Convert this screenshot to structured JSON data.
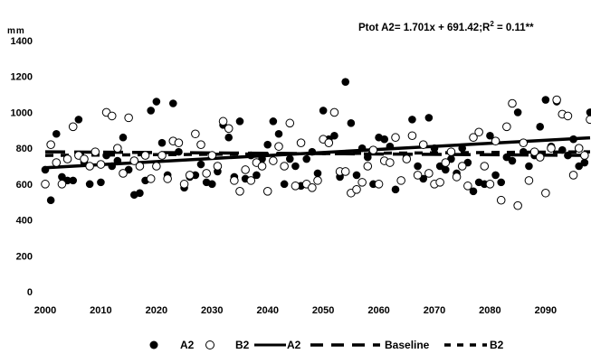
{
  "chart_data": {
    "type": "scatter",
    "ylabel": "mm",
    "annotation": "Ptot A2= 1.701x + 691.42;R",
    "annotation_sup": "2",
    "annotation_tail": " = 0.11**",
    "ylim": [
      0,
      1400
    ],
    "xlim": [
      2000,
      2098
    ],
    "yticks": [
      "0",
      "200",
      "400",
      "600",
      "800",
      "1000",
      "1200",
      "1400"
    ],
    "xticks": [
      "2000",
      "2010",
      "2020",
      "2030",
      "2040",
      "2050",
      "2060",
      "2070",
      "2080",
      "2090"
    ],
    "grid": false,
    "legend_position": "bottom",
    "legend": [
      "A2",
      "B2",
      "A2",
      "Baseline",
      "B2"
    ],
    "series": [
      {
        "name": "A2",
        "marker": "filled-circle",
        "x": [
          2000,
          2001,
          2002,
          2003,
          2004,
          2005,
          2006,
          2007,
          2008,
          2009,
          2010,
          2011,
          2012,
          2013,
          2014,
          2015,
          2016,
          2017,
          2018,
          2019,
          2020,
          2021,
          2022,
          2023,
          2024,
          2025,
          2026,
          2027,
          2028,
          2029,
          2030,
          2031,
          2032,
          2033,
          2034,
          2035,
          2036,
          2037,
          2038,
          2039,
          2040,
          2041,
          2042,
          2043,
          2044,
          2045,
          2046,
          2047,
          2048,
          2049,
          2050,
          2051,
          2052,
          2053,
          2054,
          2055,
          2056,
          2057,
          2058,
          2059,
          2060,
          2061,
          2062,
          2063,
          2064,
          2065,
          2066,
          2067,
          2068,
          2069,
          2070,
          2071,
          2072,
          2073,
          2074,
          2075,
          2076,
          2077,
          2078,
          2079,
          2080,
          2081,
          2082,
          2083,
          2084,
          2085,
          2086,
          2087,
          2088,
          2089,
          2090,
          2091,
          2092,
          2093,
          2094,
          2095,
          2096,
          2097,
          2098
        ],
        "values": [
          680,
          510,
          880,
          640,
          620,
          620,
          960,
          720,
          600,
          780,
          610,
          760,
          700,
          730,
          860,
          680,
          540,
          550,
          620,
          1010,
          1060,
          830,
          650,
          1050,
          780,
          580,
          640,
          650,
          710,
          610,
          600,
          670,
          930,
          860,
          640,
          950,
          630,
          760,
          650,
          740,
          820,
          950,
          880,
          600,
          740,
          700,
          590,
          740,
          780,
          660,
          1010,
          850,
          870,
          640,
          1170,
          940,
          650,
          800,
          750,
          600,
          860,
          850,
          810,
          570,
          620,
          750,
          960,
          700,
          630,
          970,
          800,
          700,
          680,
          740,
          660,
          800,
          720,
          560,
          610,
          600,
          870,
          650,
          610,
          750,
          730,
          1000,
          780,
          700,
          760,
          920,
          1070,
          810,
          1060,
          790,
          760,
          850,
          700,
          720,
          1000
        ]
      },
      {
        "name": "B2",
        "marker": "open-circle",
        "x": [
          2000,
          2001,
          2002,
          2003,
          2004,
          2005,
          2006,
          2007,
          2008,
          2009,
          2010,
          2011,
          2012,
          2013,
          2014,
          2015,
          2016,
          2017,
          2018,
          2019,
          2020,
          2021,
          2022,
          2023,
          2024,
          2025,
          2026,
          2027,
          2028,
          2029,
          2030,
          2031,
          2032,
          2033,
          2034,
          2035,
          2036,
          2037,
          2038,
          2039,
          2040,
          2041,
          2042,
          2043,
          2044,
          2045,
          2046,
          2047,
          2048,
          2049,
          2050,
          2051,
          2052,
          2053,
          2054,
          2055,
          2056,
          2057,
          2058,
          2059,
          2060,
          2061,
          2062,
          2063,
          2064,
          2065,
          2066,
          2067,
          2068,
          2069,
          2070,
          2071,
          2072,
          2073,
          2074,
          2075,
          2076,
          2077,
          2078,
          2079,
          2080,
          2081,
          2082,
          2083,
          2084,
          2085,
          2086,
          2087,
          2088,
          2089,
          2090,
          2091,
          2092,
          2093,
          2094,
          2095,
          2096,
          2097,
          2098
        ],
        "values": [
          600,
          820,
          720,
          600,
          740,
          920,
          760,
          740,
          700,
          780,
          710,
          1000,
          980,
          800,
          660,
          970,
          730,
          700,
          760,
          630,
          700,
          760,
          630,
          840,
          830,
          600,
          650,
          880,
          820,
          660,
          760,
          700,
          950,
          910,
          620,
          560,
          680,
          620,
          720,
          700,
          560,
          730,
          810,
          700,
          940,
          590,
          830,
          600,
          580,
          620,
          850,
          830,
          1000,
          670,
          670,
          550,
          570,
          610,
          700,
          790,
          600,
          730,
          720,
          860,
          620,
          740,
          870,
          650,
          820,
          660,
          600,
          610,
          720,
          780,
          640,
          700,
          590,
          860,
          890,
          700,
          600,
          840,
          510,
          920,
          1050,
          480,
          830,
          620,
          780,
          750,
          550,
          800,
          1070,
          990,
          980,
          650,
          800,
          760,
          960
        ]
      },
      {
        "name": "A2",
        "marker": "solid-trendline",
        "x": [
          2000,
          2098
        ],
        "values": [
          691.42,
          858.12
        ]
      },
      {
        "name": "Baseline",
        "marker": "long-dashed",
        "values": [
          780,
          760
        ]
      },
      {
        "name": "B2",
        "marker": "short-dashed",
        "values": [
          760,
          780
        ]
      }
    ]
  }
}
